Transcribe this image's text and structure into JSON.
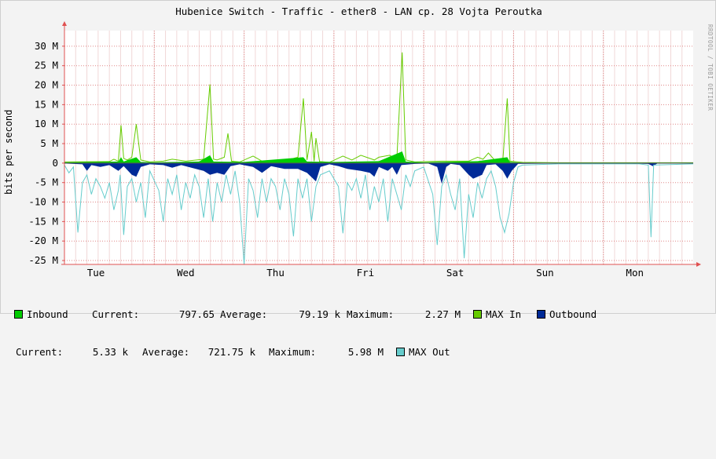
{
  "chart_data": {
    "type": "area",
    "title": "Hubenice Switch - Traffic - ether8 - LAN cp. 28 Vojta Peroutka",
    "ylabel": "bits per second",
    "ylim": [
      -26000000,
      34000000
    ],
    "yticks": [
      {
        "v": 30000000,
        "label": "30 M"
      },
      {
        "v": 25000000,
        "label": "25 M"
      },
      {
        "v": 20000000,
        "label": "20 M"
      },
      {
        "v": 15000000,
        "label": "15 M"
      },
      {
        "v": 10000000,
        "label": "10 M"
      },
      {
        "v": 5000000,
        "label": "5 M"
      },
      {
        "v": 0,
        "label": "0"
      },
      {
        "v": -5000000,
        "label": "-5 M"
      },
      {
        "v": -10000000,
        "label": "-10 M"
      },
      {
        "v": -15000000,
        "label": "-15 M"
      },
      {
        "v": -20000000,
        "label": "-20 M"
      },
      {
        "v": -25000000,
        "label": "-25 M"
      }
    ],
    "xlim": [
      0,
      7
    ],
    "xticks": [
      {
        "v": 0.35,
        "label": "Tue"
      },
      {
        "v": 1.35,
        "label": "Wed"
      },
      {
        "v": 2.35,
        "label": "Thu"
      },
      {
        "v": 3.35,
        "label": "Fri"
      },
      {
        "v": 4.35,
        "label": "Sat"
      },
      {
        "v": 5.35,
        "label": "Sun"
      },
      {
        "v": 6.35,
        "label": "Mon"
      }
    ],
    "grid": true,
    "series": [
      {
        "name": "MAX In",
        "kind": "line",
        "color": "#66cc00",
        "points": [
          [
            0.0,
            0.3
          ],
          [
            0.5,
            0.4
          ],
          [
            0.55,
            1.0
          ],
          [
            0.6,
            0.5
          ],
          [
            0.63,
            9.7
          ],
          [
            0.66,
            1.2
          ],
          [
            0.7,
            0.8
          ],
          [
            0.75,
            1.5
          ],
          [
            0.8,
            10.0
          ],
          [
            0.85,
            0.8
          ],
          [
            0.95,
            0.3
          ],
          [
            1.1,
            0.5
          ],
          [
            1.2,
            1.0
          ],
          [
            1.35,
            0.5
          ],
          [
            1.55,
            1.0
          ],
          [
            1.62,
            20.2
          ],
          [
            1.66,
            1.0
          ],
          [
            1.7,
            0.8
          ],
          [
            1.78,
            1.5
          ],
          [
            1.82,
            7.6
          ],
          [
            1.86,
            0.5
          ],
          [
            1.95,
            0.3
          ],
          [
            2.1,
            1.8
          ],
          [
            2.2,
            0.5
          ],
          [
            2.4,
            0.5
          ],
          [
            2.55,
            1.2
          ],
          [
            2.6,
            1.5
          ],
          [
            2.66,
            16.6
          ],
          [
            2.7,
            0.8
          ],
          [
            2.75,
            8.0
          ],
          [
            2.78,
            0.5
          ],
          [
            2.8,
            6.4
          ],
          [
            2.84,
            0.4
          ],
          [
            2.95,
            0.2
          ],
          [
            3.1,
            1.8
          ],
          [
            3.2,
            0.8
          ],
          [
            3.3,
            2.0
          ],
          [
            3.45,
            0.8
          ],
          [
            3.5,
            1.5
          ],
          [
            3.62,
            2.0
          ],
          [
            3.7,
            1.0
          ],
          [
            3.76,
            28.4
          ],
          [
            3.8,
            0.8
          ],
          [
            3.9,
            0.3
          ],
          [
            4.2,
            0.5
          ],
          [
            4.3,
            0.5
          ],
          [
            4.5,
            0.5
          ],
          [
            4.6,
            1.5
          ],
          [
            4.66,
            1.0
          ],
          [
            4.72,
            2.6
          ],
          [
            4.8,
            0.5
          ],
          [
            4.88,
            0.5
          ],
          [
            4.93,
            16.6
          ],
          [
            4.96,
            0.5
          ],
          [
            5.1,
            0.2
          ],
          [
            5.5,
            0.1
          ],
          [
            6.0,
            0.1
          ],
          [
            6.5,
            0.1
          ],
          [
            7.0,
            0.1
          ]
        ]
      },
      {
        "name": "Inbound",
        "kind": "area",
        "color": "#00cc00",
        "points": [
          [
            0.0,
            0.2
          ],
          [
            0.6,
            0.4
          ],
          [
            0.63,
            1.5
          ],
          [
            0.66,
            0.4
          ],
          [
            0.8,
            1.5
          ],
          [
            0.85,
            0.3
          ],
          [
            1.0,
            0.2
          ],
          [
            1.5,
            0.4
          ],
          [
            1.62,
            2.0
          ],
          [
            1.66,
            0.4
          ],
          [
            2.0,
            0.3
          ],
          [
            2.66,
            1.5
          ],
          [
            2.7,
            0.4
          ],
          [
            3.0,
            0.3
          ],
          [
            3.5,
            0.5
          ],
          [
            3.76,
            3.0
          ],
          [
            3.8,
            0.4
          ],
          [
            4.0,
            0.2
          ],
          [
            4.6,
            0.5
          ],
          [
            4.93,
            1.5
          ],
          [
            4.96,
            0.3
          ],
          [
            5.1,
            0.1
          ],
          [
            7.0,
            0.1
          ]
        ]
      },
      {
        "name": "Outbound",
        "kind": "area",
        "color": "#002a97",
        "points": [
          [
            0.0,
            -0.1
          ],
          [
            0.2,
            -0.3
          ],
          [
            0.25,
            -2.0
          ],
          [
            0.3,
            -0.5
          ],
          [
            0.4,
            -1.0
          ],
          [
            0.5,
            -0.5
          ],
          [
            0.6,
            -2.0
          ],
          [
            0.66,
            -0.8
          ],
          [
            0.75,
            -3.0
          ],
          [
            0.8,
            -3.5
          ],
          [
            0.85,
            -1.0
          ],
          [
            0.95,
            -0.3
          ],
          [
            1.1,
            -0.5
          ],
          [
            1.2,
            -1.2
          ],
          [
            1.3,
            -0.5
          ],
          [
            1.55,
            -2.0
          ],
          [
            1.62,
            -3.0
          ],
          [
            1.7,
            -2.5
          ],
          [
            1.78,
            -3.0
          ],
          [
            1.85,
            -0.8
          ],
          [
            1.95,
            -0.3
          ],
          [
            2.1,
            -1.0
          ],
          [
            2.2,
            -2.5
          ],
          [
            2.3,
            -0.8
          ],
          [
            2.45,
            -1.5
          ],
          [
            2.6,
            -1.5
          ],
          [
            2.7,
            -2.5
          ],
          [
            2.8,
            -4.7
          ],
          [
            2.85,
            -1.0
          ],
          [
            2.95,
            -0.3
          ],
          [
            3.05,
            -0.8
          ],
          [
            3.15,
            -1.5
          ],
          [
            3.3,
            -2.0
          ],
          [
            3.4,
            -2.5
          ],
          [
            3.45,
            -3.5
          ],
          [
            3.5,
            -1.0
          ],
          [
            3.6,
            -2.0
          ],
          [
            3.65,
            -1.0
          ],
          [
            3.7,
            -3.0
          ],
          [
            3.75,
            -0.5
          ],
          [
            3.9,
            -0.2
          ],
          [
            4.05,
            -0.1
          ],
          [
            4.15,
            -1.0
          ],
          [
            4.2,
            -5.3
          ],
          [
            4.25,
            -1.0
          ],
          [
            4.3,
            -0.2
          ],
          [
            4.4,
            -0.5
          ],
          [
            4.5,
            -3.0
          ],
          [
            4.55,
            -4.0
          ],
          [
            4.6,
            -3.5
          ],
          [
            4.65,
            -3.0
          ],
          [
            4.7,
            -0.5
          ],
          [
            4.8,
            -0.3
          ],
          [
            4.88,
            -2.0
          ],
          [
            4.93,
            -4.0
          ],
          [
            4.98,
            -2.0
          ],
          [
            5.05,
            -0.2
          ],
          [
            5.5,
            -0.1
          ],
          [
            6.3,
            -0.1
          ],
          [
            6.5,
            -0.2
          ],
          [
            6.55,
            -0.8
          ],
          [
            6.6,
            -0.1
          ],
          [
            7.0,
            -0.1
          ]
        ]
      },
      {
        "name": "MAX Out",
        "kind": "line",
        "color": "#66cccc",
        "points": [
          [
            0.0,
            -0.5
          ],
          [
            0.05,
            -2.5
          ],
          [
            0.1,
            -1.0
          ],
          [
            0.15,
            -17.8
          ],
          [
            0.2,
            -5.0
          ],
          [
            0.25,
            -3.0
          ],
          [
            0.3,
            -8.0
          ],
          [
            0.35,
            -4.0
          ],
          [
            0.4,
            -6.0
          ],
          [
            0.45,
            -9.0
          ],
          [
            0.5,
            -5.0
          ],
          [
            0.55,
            -12.0
          ],
          [
            0.6,
            -7.0
          ],
          [
            0.62,
            -3.0
          ],
          [
            0.66,
            -18.4
          ],
          [
            0.7,
            -6.0
          ],
          [
            0.75,
            -4.0
          ],
          [
            0.8,
            -10.0
          ],
          [
            0.85,
            -5.0
          ],
          [
            0.9,
            -14.0
          ],
          [
            0.95,
            -2.0
          ],
          [
            1.05,
            -7.0
          ],
          [
            1.1,
            -15.0
          ],
          [
            1.15,
            -4.0
          ],
          [
            1.2,
            -8.0
          ],
          [
            1.25,
            -3.0
          ],
          [
            1.3,
            -12.0
          ],
          [
            1.35,
            -5.0
          ],
          [
            1.4,
            -9.0
          ],
          [
            1.45,
            -3.0
          ],
          [
            1.5,
            -6.0
          ],
          [
            1.55,
            -14.0
          ],
          [
            1.6,
            -4.0
          ],
          [
            1.65,
            -15.0
          ],
          [
            1.7,
            -5.0
          ],
          [
            1.75,
            -10.0
          ],
          [
            1.8,
            -3.0
          ],
          [
            1.85,
            -8.0
          ],
          [
            1.9,
            -2.0
          ],
          [
            1.95,
            -10.0
          ],
          [
            2.0,
            -26.0
          ],
          [
            2.05,
            -4.0
          ],
          [
            2.1,
            -7.0
          ],
          [
            2.15,
            -14.0
          ],
          [
            2.2,
            -4.0
          ],
          [
            2.25,
            -10.0
          ],
          [
            2.3,
            -4.0
          ],
          [
            2.35,
            -6.0
          ],
          [
            2.4,
            -12.0
          ],
          [
            2.45,
            -4.0
          ],
          [
            2.5,
            -8.0
          ],
          [
            2.55,
            -18.8
          ],
          [
            2.6,
            -4.0
          ],
          [
            2.65,
            -9.0
          ],
          [
            2.7,
            -4.0
          ],
          [
            2.75,
            -15.0
          ],
          [
            2.8,
            -6.0
          ],
          [
            2.85,
            -3.0
          ],
          [
            2.95,
            -2.0
          ],
          [
            3.05,
            -6.0
          ],
          [
            3.1,
            -18.0
          ],
          [
            3.15,
            -5.0
          ],
          [
            3.2,
            -7.0
          ],
          [
            3.25,
            -4.0
          ],
          [
            3.3,
            -9.0
          ],
          [
            3.35,
            -3.0
          ],
          [
            3.4,
            -12.0
          ],
          [
            3.45,
            -6.0
          ],
          [
            3.5,
            -10.0
          ],
          [
            3.55,
            -4.0
          ],
          [
            3.6,
            -15.0
          ],
          [
            3.65,
            -4.0
          ],
          [
            3.7,
            -8.0
          ],
          [
            3.75,
            -12.0
          ],
          [
            3.8,
            -3.0
          ],
          [
            3.85,
            -6.0
          ],
          [
            3.9,
            -2.0
          ],
          [
            4.0,
            -1.0
          ],
          [
            4.1,
            -8.0
          ],
          [
            4.15,
            -21.0
          ],
          [
            4.2,
            -6.0
          ],
          [
            4.25,
            -3.0
          ],
          [
            4.3,
            -8.0
          ],
          [
            4.35,
            -12.0
          ],
          [
            4.4,
            -4.0
          ],
          [
            4.45,
            -24.4
          ],
          [
            4.5,
            -8.0
          ],
          [
            4.55,
            -14.0
          ],
          [
            4.6,
            -5.0
          ],
          [
            4.65,
            -9.0
          ],
          [
            4.7,
            -4.0
          ],
          [
            4.75,
            -2.0
          ],
          [
            4.8,
            -6.0
          ],
          [
            4.85,
            -14.0
          ],
          [
            4.9,
            -17.8
          ],
          [
            4.95,
            -13.0
          ],
          [
            5.0,
            -5.0
          ],
          [
            5.05,
            -1.0
          ],
          [
            5.1,
            -0.5
          ],
          [
            5.5,
            -0.2
          ],
          [
            6.0,
            -0.2
          ],
          [
            6.4,
            -0.2
          ],
          [
            6.5,
            -0.5
          ],
          [
            6.53,
            -19.0
          ],
          [
            6.56,
            -0.5
          ],
          [
            7.0,
            -0.2
          ]
        ]
      }
    ]
  },
  "watermark": "RRDTOOL / TOBI OETIKER",
  "legend": {
    "row1": {
      "inbound_label": "Inbound",
      "current_label": "Current:",
      "current_value": "797.65",
      "average_label": "Average:",
      "average_value": "79.19 k",
      "maximum_label": "Maximum:",
      "maximum_value": "2.27 M",
      "max_in_label": "MAX In",
      "outbound_label": "Outbound"
    },
    "row2": {
      "current_label": "Current:",
      "current_value": "5.33 k",
      "average_label": "Average:",
      "average_value": "721.75 k",
      "maximum_label": "Maximum:",
      "maximum_value": "5.98 M",
      "max_out_label": "MAX Out"
    },
    "colors": {
      "inbound": "#00cc00",
      "max_in": "#66cc00",
      "outbound": "#002a97",
      "max_out": "#66cccc"
    }
  }
}
